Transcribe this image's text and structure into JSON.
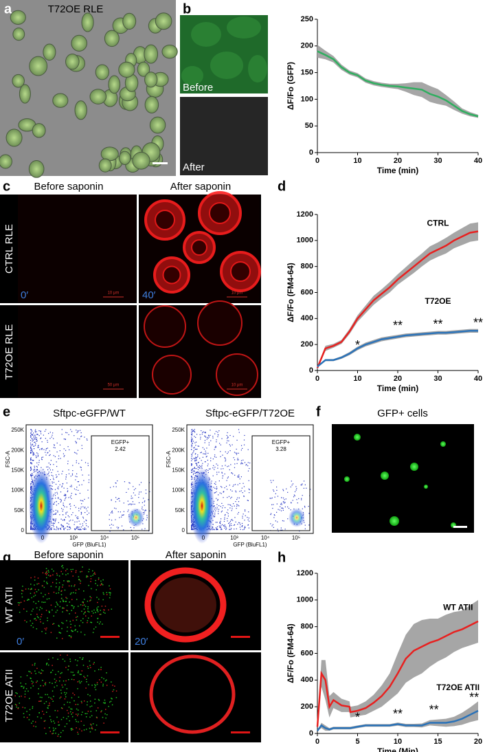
{
  "panels": {
    "a": {
      "label": "a",
      "title": "T72OE RLE"
    },
    "b": {
      "label": "b",
      "before": "Before",
      "after": "After"
    },
    "c": {
      "label": "c",
      "col1": "Before saponin",
      "col2": "After saponin",
      "row1": "CTRL RLE",
      "row2": "T72OE RLE",
      "t0": "0′",
      "t1": "40′",
      "scale": "10 μm",
      "scale2": "50 μm"
    },
    "d": {
      "label": "d"
    },
    "e": {
      "label": "e",
      "plots": [
        {
          "title": "Sftpc-eGFP/WT",
          "gate": "EGFP+",
          "pct": "2.42"
        },
        {
          "title": "Sftpc-eGFP/T72OE",
          "gate": "EGFP+",
          "pct": "3.28"
        }
      ],
      "ylabel": "FSC-A",
      "xlabel": "GFP (BluFL1)",
      "yticks": [
        "250K",
        "200K",
        "150K",
        "100K",
        "50K",
        "0"
      ],
      "xticks": [
        "0",
        "10³",
        "10⁴",
        "10⁵"
      ]
    },
    "f": {
      "label": "f",
      "title": "GFP+ cells"
    },
    "g": {
      "label": "g",
      "col1": "Before saponin",
      "col2": "After saponin",
      "row1": "WT ATII",
      "row2": "T72OE ATII",
      "t0": "0′",
      "t1": "20′"
    },
    "h": {
      "label": "h"
    }
  },
  "chart_data": [
    {
      "type": "line",
      "xlabel": "Time (min)",
      "ylabel": "ΔF/Fo (GFP)",
      "xlim": [
        0,
        40
      ],
      "ylim": [
        0,
        250
      ],
      "xticks": [
        0,
        10,
        20,
        30,
        40
      ],
      "yticks": [
        0,
        50,
        100,
        150,
        200,
        250
      ],
      "band_color": "#a6a6a6",
      "x": [
        0,
        2,
        4,
        6,
        8,
        10,
        12,
        14,
        16,
        18,
        20,
        22,
        24,
        26,
        28,
        30,
        32,
        34,
        36,
        38,
        40
      ],
      "series": [
        {
          "color": "#2fae5f",
          "values": [
            190,
            183,
            175,
            160,
            150,
            145,
            135,
            130,
            127,
            125,
            124,
            122,
            120,
            118,
            110,
            105,
            98,
            88,
            78,
            72,
            68
          ],
          "errors": [
            12,
            8,
            6,
            5,
            4,
            4,
            4,
            4,
            4,
            4,
            5,
            8,
            12,
            14,
            15,
            14,
            10,
            8,
            5,
            4,
            3
          ]
        }
      ],
      "annotations": []
    },
    {
      "type": "line",
      "xlabel": "Time (min)",
      "ylabel": "ΔF/Fo (FM4-64)",
      "xlim": [
        0,
        40
      ],
      "ylim": [
        0,
        1200
      ],
      "xticks": [
        0,
        10,
        20,
        30,
        40
      ],
      "yticks": [
        0,
        200,
        400,
        600,
        800,
        1000,
        1200
      ],
      "band_color": "#a6a6a6",
      "x": [
        0,
        2,
        4,
        6,
        8,
        10,
        12,
        14,
        16,
        18,
        20,
        22,
        24,
        26,
        28,
        30,
        32,
        34,
        36,
        38,
        40
      ],
      "series": [
        {
          "name": "CTRL",
          "color": "#e8201f",
          "values": [
            20,
            170,
            190,
            220,
            300,
            400,
            470,
            540,
            590,
            640,
            700,
            750,
            800,
            850,
            900,
            930,
            960,
            1000,
            1030,
            1060,
            1070
          ],
          "errors": [
            10,
            20,
            15,
            15,
            20,
            25,
            30,
            35,
            35,
            40,
            40,
            45,
            50,
            50,
            55,
            55,
            60,
            60,
            65,
            70,
            70
          ]
        },
        {
          "name": "T72OE",
          "color": "#2a72b8",
          "values": [
            30,
            80,
            80,
            100,
            130,
            170,
            200,
            220,
            240,
            250,
            260,
            270,
            275,
            280,
            285,
            290,
            290,
            295,
            300,
            305,
            305
          ],
          "errors": [
            5,
            8,
            8,
            10,
            12,
            14,
            15,
            15,
            15,
            15,
            14,
            14,
            14,
            14,
            14,
            14,
            14,
            14,
            14,
            14,
            14
          ]
        }
      ],
      "annotations": [
        "*",
        "**",
        "**",
        "**"
      ]
    },
    {
      "type": "line",
      "xlabel": "Time (Min)",
      "ylabel": "ΔF/Fo (FM4-64)",
      "xlim": [
        0,
        20
      ],
      "ylim": [
        0,
        1200
      ],
      "xticks": [
        0,
        5,
        10,
        15,
        20
      ],
      "yticks": [
        0,
        200,
        400,
        600,
        800,
        1000,
        1200
      ],
      "band_color": "#a6a6a6",
      "x": [
        0,
        0.5,
        1,
        1.5,
        2,
        3,
        4,
        4.1,
        5,
        6,
        7,
        8,
        9,
        10,
        11,
        12,
        13,
        14,
        15,
        16,
        17,
        18,
        19,
        20
      ],
      "series": [
        {
          "name": "WT ATII",
          "color": "#e8201f",
          "values": [
            50,
            450,
            400,
            200,
            250,
            210,
            200,
            160,
            170,
            190,
            230,
            280,
            350,
            450,
            560,
            620,
            650,
            680,
            700,
            730,
            760,
            780,
            810,
            840
          ],
          "errors": [
            0,
            100,
            150,
            80,
            60,
            50,
            40,
            40,
            40,
            50,
            60,
            80,
            100,
            150,
            180,
            200,
            200,
            180,
            160,
            160,
            150,
            140,
            150,
            160
          ]
        },
        {
          "name": "T72OE ATII",
          "color": "#2a72b8",
          "values": [
            20,
            60,
            40,
            30,
            40,
            40,
            40,
            40,
            50,
            60,
            60,
            60,
            60,
            70,
            60,
            60,
            60,
            80,
            80,
            80,
            90,
            110,
            140,
            170
          ],
          "errors": [
            0,
            20,
            20,
            10,
            10,
            10,
            10,
            10,
            10,
            10,
            10,
            10,
            10,
            12,
            12,
            12,
            15,
            20,
            25,
            30,
            35,
            45,
            55,
            70
          ]
        }
      ],
      "annotations": [
        "*",
        "**",
        "**",
        "**"
      ]
    }
  ]
}
